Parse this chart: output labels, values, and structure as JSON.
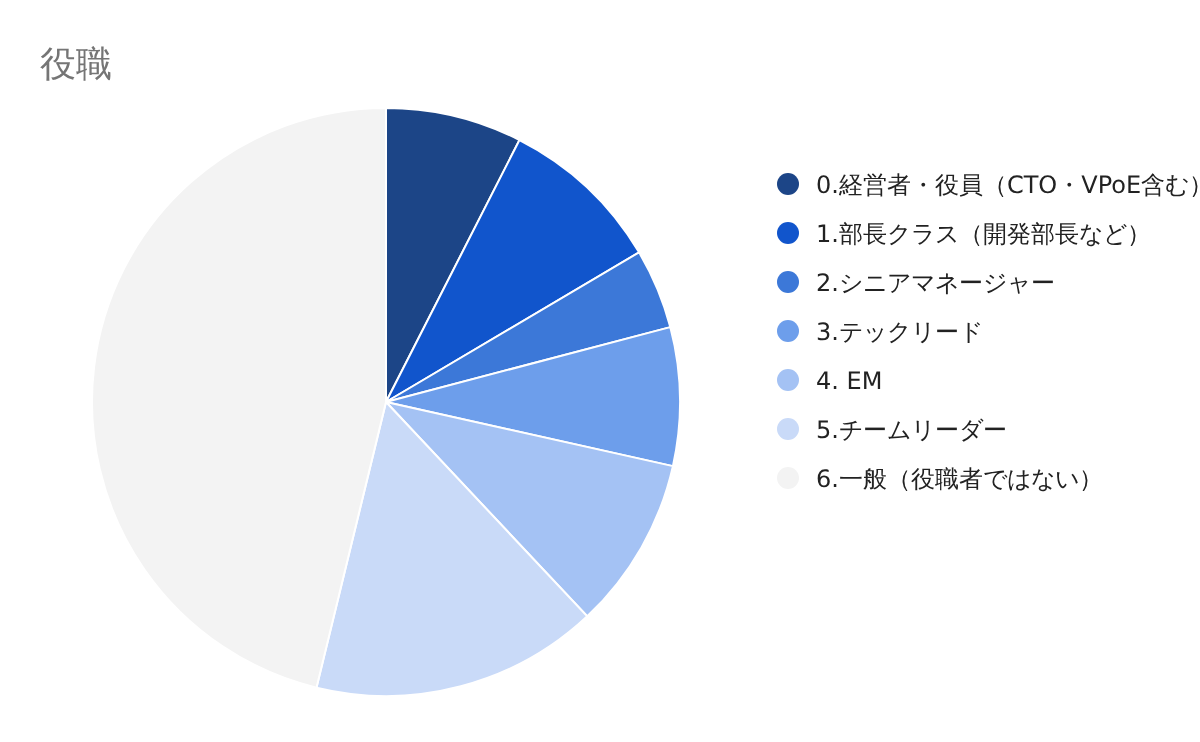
{
  "chart_data": {
    "type": "pie",
    "title": "役職",
    "legend": "right",
    "categories": [
      "0.経営者・役員（CTO・VPoE含む）",
      "1.部長クラス（開発部長など）",
      "2.シニアマネージャー",
      "3.テックリード",
      "4. EM",
      "5.チームリーダー",
      "6.一般（役職者ではない）"
    ],
    "values": [
      7.5,
      9,
      4.4,
      7.6,
      9.5,
      15.8,
      46.2
    ],
    "colors": [
      "#1c4587",
      "#1155cc",
      "#3c78d8",
      "#6d9eeb",
      "#a4c2f4",
      "#c9daf8",
      "#f3f3f3"
    ]
  }
}
